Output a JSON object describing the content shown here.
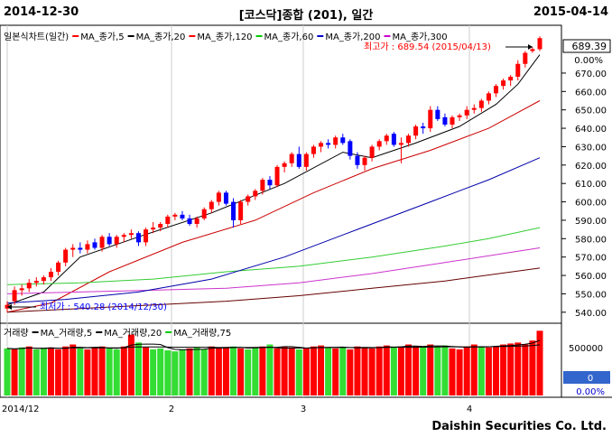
{
  "header": {
    "start_date": "2014-12-30",
    "title": "[코스닥]종합 (201), 일간",
    "end_date": "2015-04-14"
  },
  "price_legend": [
    {
      "text": "일본식차트(일간)",
      "color": "#000000"
    },
    {
      "text": "MA_종가,5",
      "color": "#000000",
      "marker": "#ff0000"
    },
    {
      "text": "MA_종가,20",
      "color": "#000000",
      "marker": "#000000"
    },
    {
      "text": "MA_종가,120",
      "color": "#000000",
      "marker": "#ff0000"
    },
    {
      "text": "MA_종가,60",
      "color": "#000000",
      "marker": "#00cc00"
    },
    {
      "text": "MA_종가,200",
      "color": "#000000",
      "marker": "#0000cc"
    },
    {
      "text": "MA_종가,300",
      "color": "#000000",
      "marker": "#cc00cc"
    }
  ],
  "annotations": {
    "high_label": "최고가 : 689.54 (2015/04/13)",
    "low_label": "최저가 : 540.28 (2014/12/30)"
  },
  "price_axis": {
    "current_value": "689.39",
    "change_pct": "0.00%",
    "ticks": [
      "670.00",
      "660.00",
      "650.00",
      "640.00",
      "630.00",
      "620.00",
      "610.00",
      "600.00",
      "590.00",
      "580.00",
      "570.00",
      "560.00",
      "550.00",
      "540.00"
    ]
  },
  "volume_legend": [
    {
      "text": "거래량",
      "marker": ""
    },
    {
      "text": "MA_거래량,5",
      "marker": "#000000"
    },
    {
      "text": "MA_거래량,20",
      "marker": "#000000"
    },
    {
      "text": "MA_거래량,75",
      "marker": "#00cc00"
    }
  ],
  "volume_axis": {
    "tick": "500000",
    "box_value": "0",
    "box_pct": "0.00%"
  },
  "x_axis": {
    "labels": [
      "2014/12",
      "2",
      "3",
      "4"
    ]
  },
  "brand": "Daishin Securities Co. Ltd.",
  "colors": {
    "up": "#ff0000",
    "down": "#0000ff",
    "ma5": "#000000",
    "ma20": "#cc0000",
    "ma60": "#33cc33",
    "ma120": "#cc33cc",
    "ma200": "#0000aa",
    "ma300": "#660000",
    "vol_up": "#ff0000",
    "vol_down": "#33dd33"
  },
  "chart_data": {
    "type": "candlestick",
    "date_range": [
      "2014-12-30",
      "2015-04-14"
    ],
    "ylim": [
      535,
      695
    ],
    "high": {
      "value": 689.54,
      "date": "2015/04/13"
    },
    "low": {
      "value": 540.28,
      "date": "2014/12/30"
    },
    "last_close": 689.39,
    "candles": [
      {
        "o": 542,
        "h": 546,
        "l": 540,
        "c": 544
      },
      {
        "o": 546,
        "h": 554,
        "l": 544,
        "c": 552
      },
      {
        "o": 552,
        "h": 555,
        "l": 549,
        "c": 553
      },
      {
        "o": 553,
        "h": 558,
        "l": 551,
        "c": 556
      },
      {
        "o": 556,
        "h": 559,
        "l": 554,
        "c": 557
      },
      {
        "o": 557,
        "h": 560,
        "l": 555,
        "c": 559
      },
      {
        "o": 559,
        "h": 564,
        "l": 557,
        "c": 562
      },
      {
        "o": 562,
        "h": 568,
        "l": 560,
        "c": 567
      },
      {
        "o": 567,
        "h": 575,
        "l": 565,
        "c": 574
      },
      {
        "o": 574,
        "h": 577,
        "l": 570,
        "c": 575
      },
      {
        "o": 575,
        "h": 578,
        "l": 572,
        "c": 574
      },
      {
        "o": 574,
        "h": 579,
        "l": 572,
        "c": 577
      },
      {
        "o": 578,
        "h": 580,
        "l": 574,
        "c": 575
      },
      {
        "o": 575,
        "h": 582,
        "l": 573,
        "c": 581
      },
      {
        "o": 581,
        "h": 583,
        "l": 576,
        "c": 577
      },
      {
        "o": 577,
        "h": 582,
        "l": 575,
        "c": 581
      },
      {
        "o": 581,
        "h": 583,
        "l": 578,
        "c": 582
      },
      {
        "o": 582,
        "h": 585,
        "l": 580,
        "c": 583
      },
      {
        "o": 583,
        "h": 584,
        "l": 576,
        "c": 578
      },
      {
        "o": 578,
        "h": 586,
        "l": 576,
        "c": 585
      },
      {
        "o": 585,
        "h": 589,
        "l": 583,
        "c": 586
      },
      {
        "o": 586,
        "h": 589,
        "l": 584,
        "c": 588
      },
      {
        "o": 588,
        "h": 593,
        "l": 586,
        "c": 592
      },
      {
        "o": 592,
        "h": 594,
        "l": 590,
        "c": 593
      },
      {
        "o": 593,
        "h": 595,
        "l": 590,
        "c": 591
      },
      {
        "o": 591,
        "h": 593,
        "l": 587,
        "c": 588
      },
      {
        "o": 588,
        "h": 592,
        "l": 586,
        "c": 591
      },
      {
        "o": 591,
        "h": 597,
        "l": 590,
        "c": 596
      },
      {
        "o": 596,
        "h": 601,
        "l": 594,
        "c": 600
      },
      {
        "o": 600,
        "h": 606,
        "l": 598,
        "c": 605
      },
      {
        "o": 605,
        "h": 606,
        "l": 598,
        "c": 599
      },
      {
        "o": 600,
        "h": 602,
        "l": 586,
        "c": 590
      },
      {
        "o": 590,
        "h": 601,
        "l": 588,
        "c": 600
      },
      {
        "o": 600,
        "h": 604,
        "l": 598,
        "c": 603
      },
      {
        "o": 603,
        "h": 607,
        "l": 601,
        "c": 606
      },
      {
        "o": 606,
        "h": 613,
        "l": 604,
        "c": 612
      },
      {
        "o": 612,
        "h": 614,
        "l": 607,
        "c": 609
      },
      {
        "o": 609,
        "h": 620,
        "l": 608,
        "c": 619
      },
      {
        "o": 619,
        "h": 622,
        "l": 616,
        "c": 621
      },
      {
        "o": 621,
        "h": 627,
        "l": 619,
        "c": 626
      },
      {
        "o": 626,
        "h": 630,
        "l": 618,
        "c": 619
      },
      {
        "o": 619,
        "h": 627,
        "l": 617,
        "c": 626
      },
      {
        "o": 626,
        "h": 631,
        "l": 624,
        "c": 630
      },
      {
        "o": 630,
        "h": 633,
        "l": 627,
        "c": 632
      },
      {
        "o": 632,
        "h": 634,
        "l": 629,
        "c": 631
      },
      {
        "o": 631,
        "h": 636,
        "l": 629,
        "c": 635
      },
      {
        "o": 635,
        "h": 637,
        "l": 631,
        "c": 632
      },
      {
        "o": 633,
        "h": 634,
        "l": 623,
        "c": 625
      },
      {
        "o": 625,
        "h": 627,
        "l": 618,
        "c": 620
      },
      {
        "o": 620,
        "h": 625,
        "l": 617,
        "c": 624
      },
      {
        "o": 624,
        "h": 631,
        "l": 622,
        "c": 630
      },
      {
        "o": 630,
        "h": 634,
        "l": 628,
        "c": 633
      },
      {
        "o": 633,
        "h": 637,
        "l": 631,
        "c": 636
      },
      {
        "o": 637,
        "h": 638,
        "l": 630,
        "c": 631
      },
      {
        "o": 631,
        "h": 635,
        "l": 621,
        "c": 632
      },
      {
        "o": 632,
        "h": 637,
        "l": 630,
        "c": 636
      },
      {
        "o": 636,
        "h": 642,
        "l": 634,
        "c": 641
      },
      {
        "o": 641,
        "h": 643,
        "l": 637,
        "c": 640
      },
      {
        "o": 640,
        "h": 652,
        "l": 638,
        "c": 650
      },
      {
        "o": 650,
        "h": 652,
        "l": 644,
        "c": 645
      },
      {
        "o": 646,
        "h": 648,
        "l": 641,
        "c": 642
      },
      {
        "o": 642,
        "h": 647,
        "l": 640,
        "c": 646
      },
      {
        "o": 646,
        "h": 648,
        "l": 644,
        "c": 647
      },
      {
        "o": 647,
        "h": 652,
        "l": 645,
        "c": 650
      },
      {
        "o": 650,
        "h": 653,
        "l": 648,
        "c": 651
      },
      {
        "o": 651,
        "h": 656,
        "l": 649,
        "c": 655
      },
      {
        "o": 655,
        "h": 660,
        "l": 653,
        "c": 659
      },
      {
        "o": 659,
        "h": 664,
        "l": 657,
        "c": 663
      },
      {
        "o": 663,
        "h": 667,
        "l": 661,
        "c": 666
      },
      {
        "o": 666,
        "h": 669,
        "l": 663,
        "c": 668
      },
      {
        "o": 668,
        "h": 677,
        "l": 666,
        "c": 675
      },
      {
        "o": 675,
        "h": 682,
        "l": 673,
        "c": 681
      },
      {
        "o": 682,
        "h": 684,
        "l": 681,
        "c": 683
      },
      {
        "o": 683,
        "h": 690,
        "l": 682,
        "c": 689
      }
    ],
    "ma_series": [
      {
        "name": "MA_종가,5",
        "key": "ma5",
        "points": [
          [
            0,
            544
          ],
          [
            5,
            551
          ],
          [
            10,
            570
          ],
          [
            18,
            581
          ],
          [
            28,
            594
          ],
          [
            38,
            610
          ],
          [
            46,
            627
          ],
          [
            50,
            624
          ],
          [
            56,
            632
          ],
          [
            62,
            641
          ],
          [
            67,
            653
          ],
          [
            70,
            664
          ],
          [
            73,
            680
          ]
        ]
      },
      {
        "name": "MA_종가,20",
        "key": "ma20",
        "points": [
          [
            0,
            540
          ],
          [
            6,
            545
          ],
          [
            14,
            562
          ],
          [
            24,
            578
          ],
          [
            34,
            590
          ],
          [
            42,
            605
          ],
          [
            50,
            618
          ],
          [
            58,
            628
          ],
          [
            66,
            640
          ],
          [
            73,
            655
          ]
        ]
      },
      {
        "name": "MA_종가,60",
        "key": "ma60",
        "points": [
          [
            0,
            555
          ],
          [
            10,
            556
          ],
          [
            20,
            558
          ],
          [
            30,
            562
          ],
          [
            40,
            565
          ],
          [
            50,
            570
          ],
          [
            60,
            576
          ],
          [
            66,
            580
          ],
          [
            73,
            586
          ]
        ]
      },
      {
        "name": "MA_종가,120",
        "key": "ma120",
        "points": [
          [
            0,
            550
          ],
          [
            10,
            551
          ],
          [
            20,
            552
          ],
          [
            30,
            553
          ],
          [
            40,
            556
          ],
          [
            50,
            561
          ],
          [
            60,
            567
          ],
          [
            73,
            575
          ]
        ]
      },
      {
        "name": "MA_종가,200",
        "key": "ma200",
        "points": [
          [
            0,
            545
          ],
          [
            8,
            547
          ],
          [
            18,
            551
          ],
          [
            28,
            558
          ],
          [
            38,
            570
          ],
          [
            48,
            585
          ],
          [
            58,
            600
          ],
          [
            66,
            612
          ],
          [
            73,
            624
          ]
        ]
      },
      {
        "name": "MA_종가,300",
        "key": "ma300",
        "points": [
          [
            0,
            540
          ],
          [
            10,
            542
          ],
          [
            20,
            544
          ],
          [
            30,
            546
          ],
          [
            40,
            549
          ],
          [
            50,
            553
          ],
          [
            60,
            557
          ],
          [
            73,
            564
          ]
        ]
      }
    ],
    "volume": {
      "values": [
        480,
        470,
        490,
        500,
        470,
        480,
        490,
        470,
        500,
        520,
        480,
        470,
        490,
        500,
        480,
        470,
        500,
        620,
        540,
        490,
        470,
        480,
        460,
        450,
        470,
        480,
        490,
        470,
        500,
        480,
        490,
        500,
        480,
        470,
        490,
        500,
        520,
        480,
        500,
        490,
        470,
        480,
        500,
        510,
        490,
        480,
        490,
        470,
        500,
        490,
        480,
        500,
        510,
        490,
        500,
        520,
        500,
        490,
        520,
        500,
        510,
        480,
        470,
        500,
        520,
        500,
        490,
        500,
        520,
        530,
        540,
        520,
        560,
        660
      ],
      "directions": [
        0,
        1,
        0,
        1,
        0,
        0,
        1,
        1,
        1,
        1,
        0,
        1,
        1,
        1,
        0,
        0,
        1,
        1,
        0,
        1,
        0,
        0,
        0,
        0,
        0,
        1,
        0,
        0,
        1,
        1,
        1,
        0,
        1,
        0,
        0,
        1,
        0,
        1,
        1,
        1,
        0,
        1,
        1,
        1,
        0,
        1,
        0,
        1,
        1,
        1,
        1,
        1,
        1,
        0,
        1,
        1,
        1,
        0,
        1,
        0,
        0,
        1,
        1,
        1,
        1,
        0,
        1,
        1,
        1,
        1,
        1,
        1,
        1,
        1
      ]
    }
  }
}
